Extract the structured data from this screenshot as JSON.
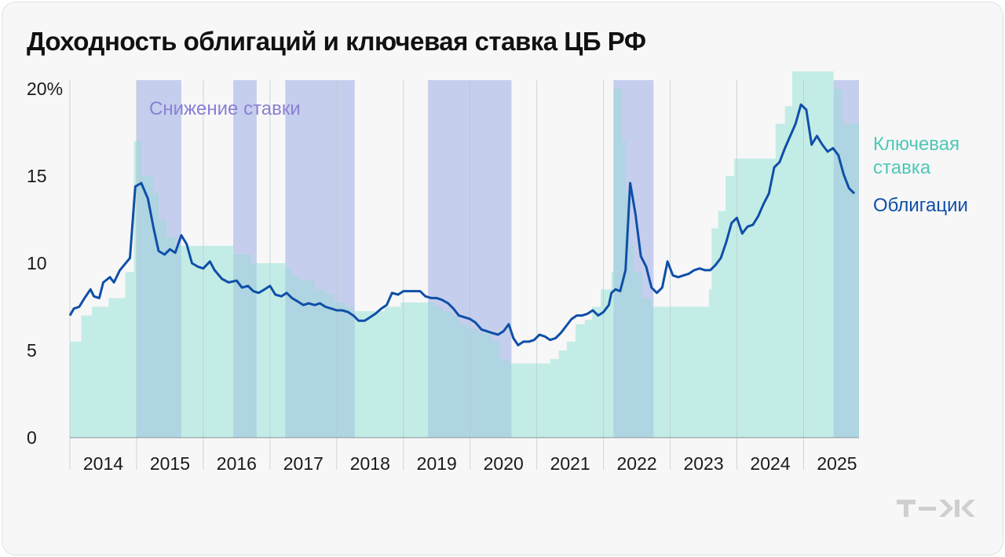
{
  "chart_data": {
    "type": "area",
    "title": "Доходность облигаций и ключевая ставка ЦБ РФ",
    "y_ticks": [
      {
        "value": 0,
        "label": "0"
      },
      {
        "value": 5,
        "label": "5"
      },
      {
        "value": 10,
        "label": "10"
      },
      {
        "value": 15,
        "label": "15"
      },
      {
        "value": 20,
        "label": "20%"
      }
    ],
    "ylim": [
      0,
      20.5
    ],
    "xlim": [
      2014.0,
      2025.83
    ],
    "x_ticks": [
      "2014",
      "2015",
      "2016",
      "2017",
      "2018",
      "2019",
      "2020",
      "2021",
      "2022",
      "2023",
      "2024",
      "2025"
    ],
    "rate_cut_label": "Снижение ставки",
    "rate_cut_periods": [
      [
        2015.0,
        2015.67
      ],
      [
        2016.45,
        2016.8
      ],
      [
        2017.23,
        2018.27
      ],
      [
        2019.37,
        2020.62
      ],
      [
        2022.15,
        2022.75
      ],
      [
        2025.45,
        2025.83
      ]
    ],
    "series": [
      {
        "name": "Ключевая ставка",
        "color": "#c4ece6",
        "label_color": "#4fc7b7",
        "type": "step",
        "points": [
          [
            2014.0,
            5.5
          ],
          [
            2014.17,
            7.0
          ],
          [
            2014.33,
            7.5
          ],
          [
            2014.58,
            8.0
          ],
          [
            2014.83,
            9.5
          ],
          [
            2014.96,
            17.0
          ],
          [
            2015.08,
            15.0
          ],
          [
            2015.25,
            14.0
          ],
          [
            2015.33,
            12.5
          ],
          [
            2015.45,
            11.5
          ],
          [
            2015.58,
            11.0
          ],
          [
            2016.45,
            10.5
          ],
          [
            2016.72,
            10.0
          ],
          [
            2017.23,
            9.75
          ],
          [
            2017.33,
            9.25
          ],
          [
            2017.45,
            9.0
          ],
          [
            2017.67,
            8.5
          ],
          [
            2017.83,
            8.25
          ],
          [
            2017.96,
            7.75
          ],
          [
            2018.12,
            7.5
          ],
          [
            2018.25,
            7.25
          ],
          [
            2018.72,
            7.5
          ],
          [
            2018.96,
            7.75
          ],
          [
            2019.45,
            7.5
          ],
          [
            2019.58,
            7.25
          ],
          [
            2019.72,
            7.0
          ],
          [
            2019.83,
            6.5
          ],
          [
            2019.96,
            6.25
          ],
          [
            2020.12,
            6.0
          ],
          [
            2020.33,
            5.5
          ],
          [
            2020.45,
            4.5
          ],
          [
            2020.58,
            4.25
          ],
          [
            2021.2,
            4.5
          ],
          [
            2021.33,
            5.0
          ],
          [
            2021.45,
            5.5
          ],
          [
            2021.58,
            6.5
          ],
          [
            2021.72,
            6.75
          ],
          [
            2021.83,
            7.5
          ],
          [
            2021.96,
            8.5
          ],
          [
            2022.12,
            9.5
          ],
          [
            2022.15,
            20.0
          ],
          [
            2022.28,
            17.0
          ],
          [
            2022.33,
            14.0
          ],
          [
            2022.4,
            11.0
          ],
          [
            2022.45,
            9.5
          ],
          [
            2022.58,
            8.0
          ],
          [
            2022.72,
            7.5
          ],
          [
            2023.58,
            8.5
          ],
          [
            2023.62,
            12.0
          ],
          [
            2023.72,
            13.0
          ],
          [
            2023.83,
            15.0
          ],
          [
            2023.96,
            16.0
          ],
          [
            2024.58,
            18.0
          ],
          [
            2024.72,
            19.0
          ],
          [
            2024.83,
            21.0
          ],
          [
            2025.45,
            20.0
          ],
          [
            2025.58,
            18.0
          ],
          [
            2025.83,
            18.0
          ]
        ]
      },
      {
        "name": "Облигации",
        "color": "#0f4fa8",
        "type": "line",
        "points": [
          [
            2014.0,
            7.0
          ],
          [
            2014.06,
            7.4
          ],
          [
            2014.14,
            7.5
          ],
          [
            2014.22,
            8.0
          ],
          [
            2014.31,
            8.5
          ],
          [
            2014.36,
            8.1
          ],
          [
            2014.44,
            8.0
          ],
          [
            2014.5,
            8.9
          ],
          [
            2014.6,
            9.2
          ],
          [
            2014.66,
            8.9
          ],
          [
            2014.75,
            9.6
          ],
          [
            2014.9,
            10.3
          ],
          [
            2014.98,
            14.4
          ],
          [
            2015.07,
            14.6
          ],
          [
            2015.17,
            13.7
          ],
          [
            2015.25,
            12.1
          ],
          [
            2015.33,
            10.7
          ],
          [
            2015.42,
            10.5
          ],
          [
            2015.5,
            10.8
          ],
          [
            2015.58,
            10.6
          ],
          [
            2015.67,
            11.6
          ],
          [
            2015.75,
            11.1
          ],
          [
            2015.83,
            10.0
          ],
          [
            2015.92,
            9.8
          ],
          [
            2016.0,
            9.7
          ],
          [
            2016.1,
            10.1
          ],
          [
            2016.17,
            9.6
          ],
          [
            2016.28,
            9.1
          ],
          [
            2016.38,
            8.9
          ],
          [
            2016.5,
            9.0
          ],
          [
            2016.58,
            8.6
          ],
          [
            2016.67,
            8.7
          ],
          [
            2016.75,
            8.4
          ],
          [
            2016.83,
            8.3
          ],
          [
            2016.92,
            8.5
          ],
          [
            2017.0,
            8.7
          ],
          [
            2017.08,
            8.2
          ],
          [
            2017.17,
            8.1
          ],
          [
            2017.25,
            8.3
          ],
          [
            2017.33,
            8.0
          ],
          [
            2017.42,
            7.8
          ],
          [
            2017.5,
            7.6
          ],
          [
            2017.58,
            7.7
          ],
          [
            2017.67,
            7.6
          ],
          [
            2017.75,
            7.7
          ],
          [
            2017.83,
            7.5
          ],
          [
            2017.92,
            7.4
          ],
          [
            2018.0,
            7.3
          ],
          [
            2018.08,
            7.3
          ],
          [
            2018.17,
            7.2
          ],
          [
            2018.25,
            7.0
          ],
          [
            2018.33,
            6.7
          ],
          [
            2018.42,
            6.7
          ],
          [
            2018.5,
            6.9
          ],
          [
            2018.58,
            7.1
          ],
          [
            2018.67,
            7.4
          ],
          [
            2018.75,
            7.6
          ],
          [
            2018.83,
            8.3
          ],
          [
            2018.92,
            8.2
          ],
          [
            2019.0,
            8.4
          ],
          [
            2019.08,
            8.4
          ],
          [
            2019.17,
            8.4
          ],
          [
            2019.25,
            8.4
          ],
          [
            2019.33,
            8.1
          ],
          [
            2019.42,
            8.0
          ],
          [
            2019.5,
            8.0
          ],
          [
            2019.58,
            7.9
          ],
          [
            2019.67,
            7.7
          ],
          [
            2019.75,
            7.4
          ],
          [
            2019.83,
            7.0
          ],
          [
            2019.92,
            6.9
          ],
          [
            2020.0,
            6.8
          ],
          [
            2020.08,
            6.6
          ],
          [
            2020.17,
            6.2
          ],
          [
            2020.25,
            6.1
          ],
          [
            2020.33,
            6.0
          ],
          [
            2020.42,
            5.9
          ],
          [
            2020.5,
            6.1
          ],
          [
            2020.58,
            6.5
          ],
          [
            2020.65,
            5.7
          ],
          [
            2020.72,
            5.3
          ],
          [
            2020.8,
            5.5
          ],
          [
            2020.88,
            5.5
          ],
          [
            2020.96,
            5.6
          ],
          [
            2021.04,
            5.9
          ],
          [
            2021.12,
            5.8
          ],
          [
            2021.2,
            5.6
          ],
          [
            2021.28,
            5.7
          ],
          [
            2021.36,
            6.0
          ],
          [
            2021.44,
            6.4
          ],
          [
            2021.52,
            6.8
          ],
          [
            2021.6,
            7.0
          ],
          [
            2021.68,
            7.0
          ],
          [
            2021.76,
            7.1
          ],
          [
            2021.84,
            7.3
          ],
          [
            2021.92,
            7.0
          ],
          [
            2022.0,
            7.2
          ],
          [
            2022.08,
            7.6
          ],
          [
            2022.12,
            8.3
          ],
          [
            2022.18,
            8.5
          ],
          [
            2022.25,
            8.4
          ],
          [
            2022.33,
            9.6
          ],
          [
            2022.4,
            14.6
          ],
          [
            2022.48,
            12.8
          ],
          [
            2022.56,
            10.4
          ],
          [
            2022.64,
            9.8
          ],
          [
            2022.72,
            8.6
          ],
          [
            2022.8,
            8.3
          ],
          [
            2022.88,
            8.6
          ],
          [
            2022.96,
            10.1
          ],
          [
            2023.04,
            9.3
          ],
          [
            2023.12,
            9.2
          ],
          [
            2023.2,
            9.3
          ],
          [
            2023.28,
            9.4
          ],
          [
            2023.36,
            9.6
          ],
          [
            2023.44,
            9.7
          ],
          [
            2023.52,
            9.6
          ],
          [
            2023.6,
            9.6
          ],
          [
            2023.68,
            9.9
          ],
          [
            2023.76,
            10.3
          ],
          [
            2023.84,
            11.2
          ],
          [
            2023.92,
            12.3
          ],
          [
            2024.0,
            12.6
          ],
          [
            2024.08,
            11.7
          ],
          [
            2024.16,
            12.1
          ],
          [
            2024.24,
            12.2
          ],
          [
            2024.32,
            12.7
          ],
          [
            2024.4,
            13.4
          ],
          [
            2024.48,
            14.0
          ],
          [
            2024.56,
            15.5
          ],
          [
            2024.64,
            15.8
          ],
          [
            2024.72,
            16.6
          ],
          [
            2024.8,
            17.3
          ],
          [
            2024.88,
            18.0
          ],
          [
            2024.96,
            19.1
          ],
          [
            2025.04,
            18.8
          ],
          [
            2025.12,
            16.8
          ],
          [
            2025.2,
            17.3
          ],
          [
            2025.28,
            16.8
          ],
          [
            2025.36,
            16.4
          ],
          [
            2025.44,
            16.6
          ],
          [
            2025.52,
            16.2
          ],
          [
            2025.6,
            15.1
          ],
          [
            2025.68,
            14.3
          ],
          [
            2025.76,
            14.0
          ]
        ]
      }
    ],
    "legend_placement": "right",
    "grid": "vertical lines at year boundaries"
  }
}
